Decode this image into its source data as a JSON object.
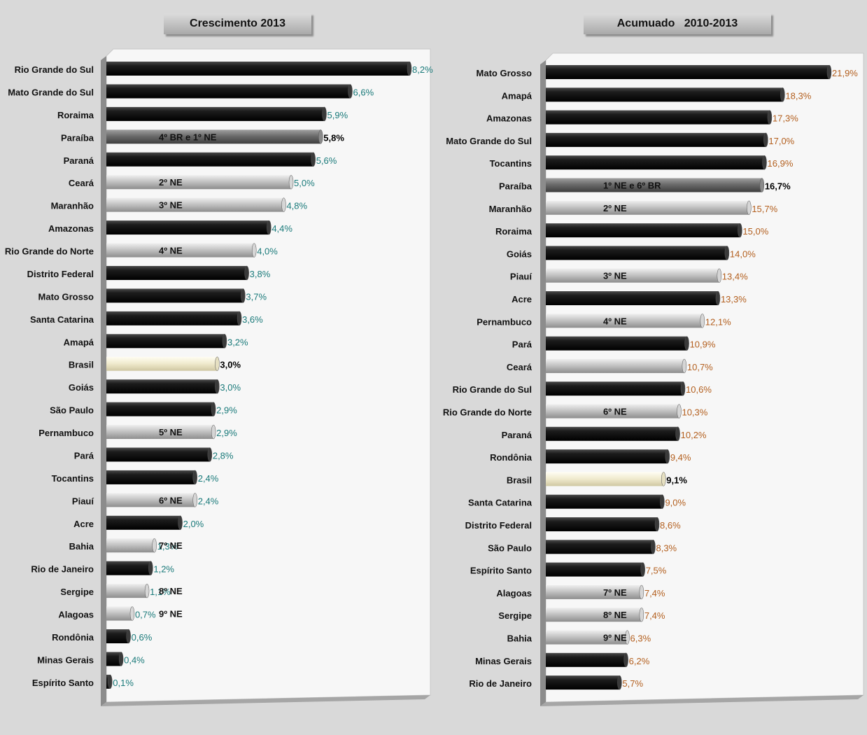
{
  "colors": {
    "state_bar": "#111111",
    "ne_bar": "#b8b8b8",
    "highlight_bar": "#6e6e6e",
    "brasil_bar": "#f3efd8",
    "left_label": "#1a7a7a",
    "right_label": "#b35f1e",
    "bold_label": "#000000",
    "plot_bg": "#f7f7f7",
    "floor": "#a6a6a6"
  },
  "chart_data": [
    {
      "type": "bar",
      "orientation": "horizontal",
      "title": "Crescimento 2013",
      "xlim": [
        0,
        8.2
      ],
      "categories": [
        "Rio Grande do Sul",
        "Mato Grande do Sul",
        "Roraima",
        "Paraíba",
        "Paraná",
        "Ceará",
        "Maranhão",
        "Amazonas",
        "Rio Grande do Norte",
        "Distrito Federal",
        "Mato Grosso",
        "Santa Catarina",
        "Amapá",
        "Brasil",
        "Goiás",
        "São Paulo",
        "Pernambuco",
        "Pará",
        "Tocantins",
        "Piauí",
        "Acre",
        "Bahia",
        "Rio de Janeiro",
        "Sergipe",
        "Alagoas",
        "Rondônia",
        "Minas Gerais",
        "Espírito Santo"
      ],
      "values": [
        8.2,
        6.6,
        5.9,
        5.8,
        5.6,
        5.0,
        4.8,
        4.4,
        4.0,
        3.8,
        3.7,
        3.6,
        3.2,
        3.0,
        3.0,
        2.9,
        2.9,
        2.8,
        2.4,
        2.4,
        2.0,
        1.3,
        1.2,
        1.1,
        0.7,
        0.6,
        0.4,
        0.1
      ],
      "value_labels": [
        "8,2%",
        "6,6%",
        "5,9%",
        "5,8%",
        "5,6%",
        "5,0%",
        "4,8%",
        "4,4%",
        "4,0%",
        "3,8%",
        "3,7%",
        "3,6%",
        "3,2%",
        "3,0%",
        "3,0%",
        "2,9%",
        "2,9%",
        "2,8%",
        "2,4%",
        "2,4%",
        "2,0%",
        "1,3%",
        "1,2%",
        "1,1%",
        "0,7%",
        "0,6%",
        "0,4%",
        "0,1%"
      ],
      "bar_styles": [
        "state",
        "state",
        "state",
        "highlight",
        "state",
        "ne",
        "ne",
        "state",
        "ne",
        "state",
        "state",
        "state",
        "state",
        "brasil",
        "state",
        "state",
        "ne",
        "state",
        "state",
        "ne",
        "state",
        "ne",
        "state",
        "ne",
        "ne",
        "state",
        "state",
        "state"
      ],
      "bar_texts": [
        "",
        "",
        "",
        "4º  BR e  1º NE",
        "",
        "2º NE",
        "3º NE",
        "",
        "4º NE",
        "",
        "",
        "",
        "",
        "",
        "",
        "",
        "5º NE",
        "",
        "",
        "6º NE",
        "",
        "7º NE",
        "",
        "8º NE",
        "9º NE",
        "",
        "",
        ""
      ]
    },
    {
      "type": "bar",
      "orientation": "horizontal",
      "title": "Acumuado   2010-2013",
      "xlim": [
        0,
        21.9
      ],
      "categories": [
        "Mato Grosso",
        "Amapá",
        "Amazonas",
        "Mato Grande do Sul",
        "Tocantins",
        "Paraíba",
        "Maranhão",
        "Roraima",
        "Goiás",
        "Piauí",
        "Acre",
        "Pernambuco",
        "Pará",
        "Ceará",
        "Rio Grande do Sul",
        "Rio Grande do Norte",
        "Paraná",
        "Rondônia",
        "Brasil",
        "Santa Catarina",
        "Distrito Federal",
        "São Paulo",
        "Espírito Santo",
        "Alagoas",
        "Sergipe",
        "Bahia",
        "Minas Gerais",
        "Rio de Janeiro"
      ],
      "values": [
        21.9,
        18.3,
        17.3,
        17.0,
        16.9,
        16.7,
        15.7,
        15.0,
        14.0,
        13.4,
        13.3,
        12.1,
        10.9,
        10.7,
        10.6,
        10.3,
        10.2,
        9.4,
        9.1,
        9.0,
        8.6,
        8.3,
        7.5,
        7.4,
        7.4,
        6.3,
        6.2,
        5.7
      ],
      "value_labels": [
        "21,9%",
        "18,3%",
        "17,3%",
        "17,0%",
        "16,9%",
        "16,7%",
        "15,7%",
        "15,0%",
        "14,0%",
        "13,4%",
        "13,3%",
        "12,1%",
        "10,9%",
        "10,7%",
        "10,6%",
        "10,3%",
        "10,2%",
        "9,4%",
        "9,1%",
        "9,0%",
        "8,6%",
        "8,3%",
        "7,5%",
        "7,4%",
        "7,4%",
        "6,3%",
        "6,2%",
        "5,7%"
      ],
      "bar_styles": [
        "state",
        "state",
        "state",
        "state",
        "state",
        "highlight",
        "ne",
        "state",
        "state",
        "ne",
        "state",
        "ne",
        "state",
        "ne",
        "state",
        "ne",
        "state",
        "state",
        "brasil",
        "state",
        "state",
        "state",
        "state",
        "ne",
        "ne",
        "ne",
        "state",
        "state"
      ],
      "bar_texts": [
        "",
        "",
        "",
        "",
        "",
        "1º  NE e  6º BR",
        "2º NE",
        "",
        "",
        "3º NE",
        "",
        "4º NE",
        "",
        "",
        "",
        "6º NE",
        "",
        "",
        "",
        "",
        "",
        "",
        "",
        "7º NE",
        "8º NE",
        "9º NE",
        "",
        ""
      ]
    }
  ]
}
